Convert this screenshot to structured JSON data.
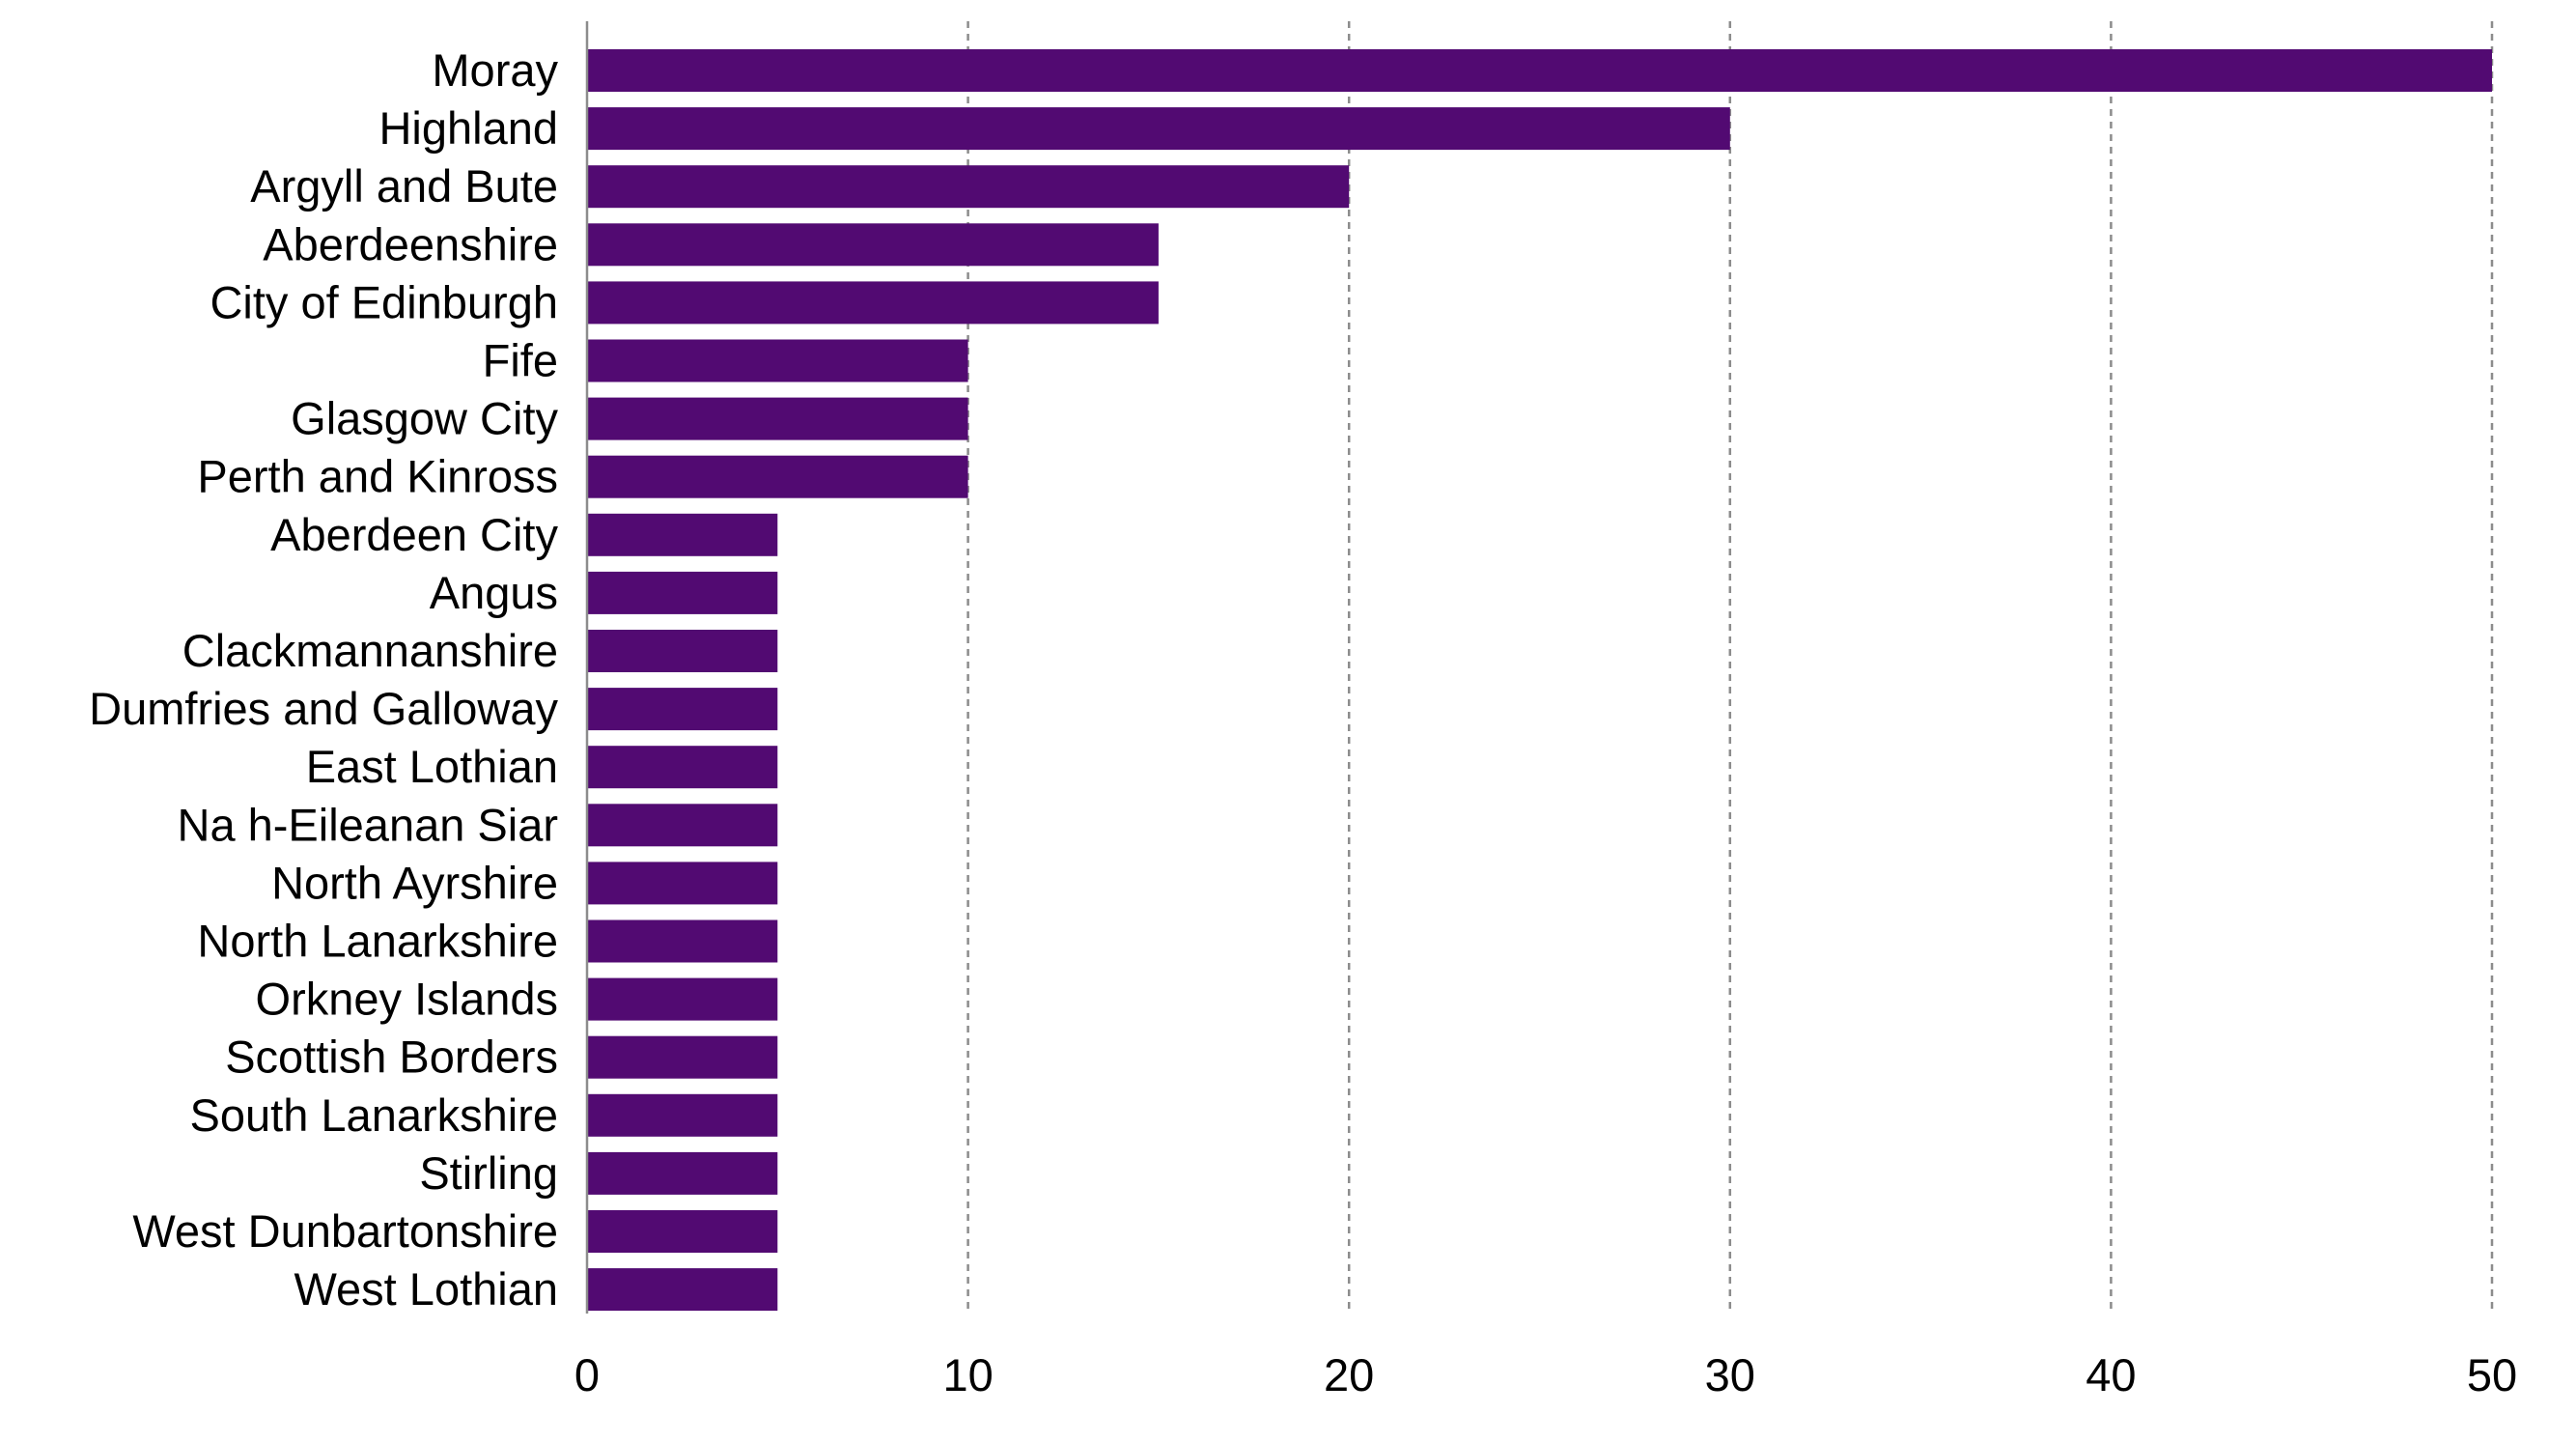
{
  "chart_data": {
    "type": "bar",
    "orientation": "horizontal",
    "title": "",
    "xlabel": "",
    "ylabel": "",
    "categories": [
      "Moray",
      "Highland",
      "Argyll and Bute",
      "Aberdeenshire",
      "City of Edinburgh",
      "Fife",
      "Glasgow City",
      "Perth and Kinross",
      "Aberdeen City",
      "Angus",
      "Clackmannanshire",
      "Dumfries and Galloway",
      "East Lothian",
      "Na h-Eileanan Siar",
      "North Ayrshire",
      "North Lanarkshire",
      "Orkney Islands",
      "Scottish Borders",
      "South Lanarkshire",
      "Stirling",
      "West Dunbartonshire",
      "West Lothian"
    ],
    "values": [
      50,
      30,
      20,
      15,
      15,
      10,
      10,
      10,
      5,
      5,
      5,
      5,
      5,
      5,
      5,
      5,
      5,
      5,
      5,
      5,
      5,
      5
    ],
    "xlim": [
      0,
      50
    ],
    "xticks": [
      "0",
      "10",
      "20",
      "30",
      "40",
      "50"
    ],
    "grid": "vertical dashed",
    "legend": "none",
    "bar_color": "#520a72",
    "grid_color": "#8c8c8c",
    "axis_color": "#8c8c8c"
  }
}
